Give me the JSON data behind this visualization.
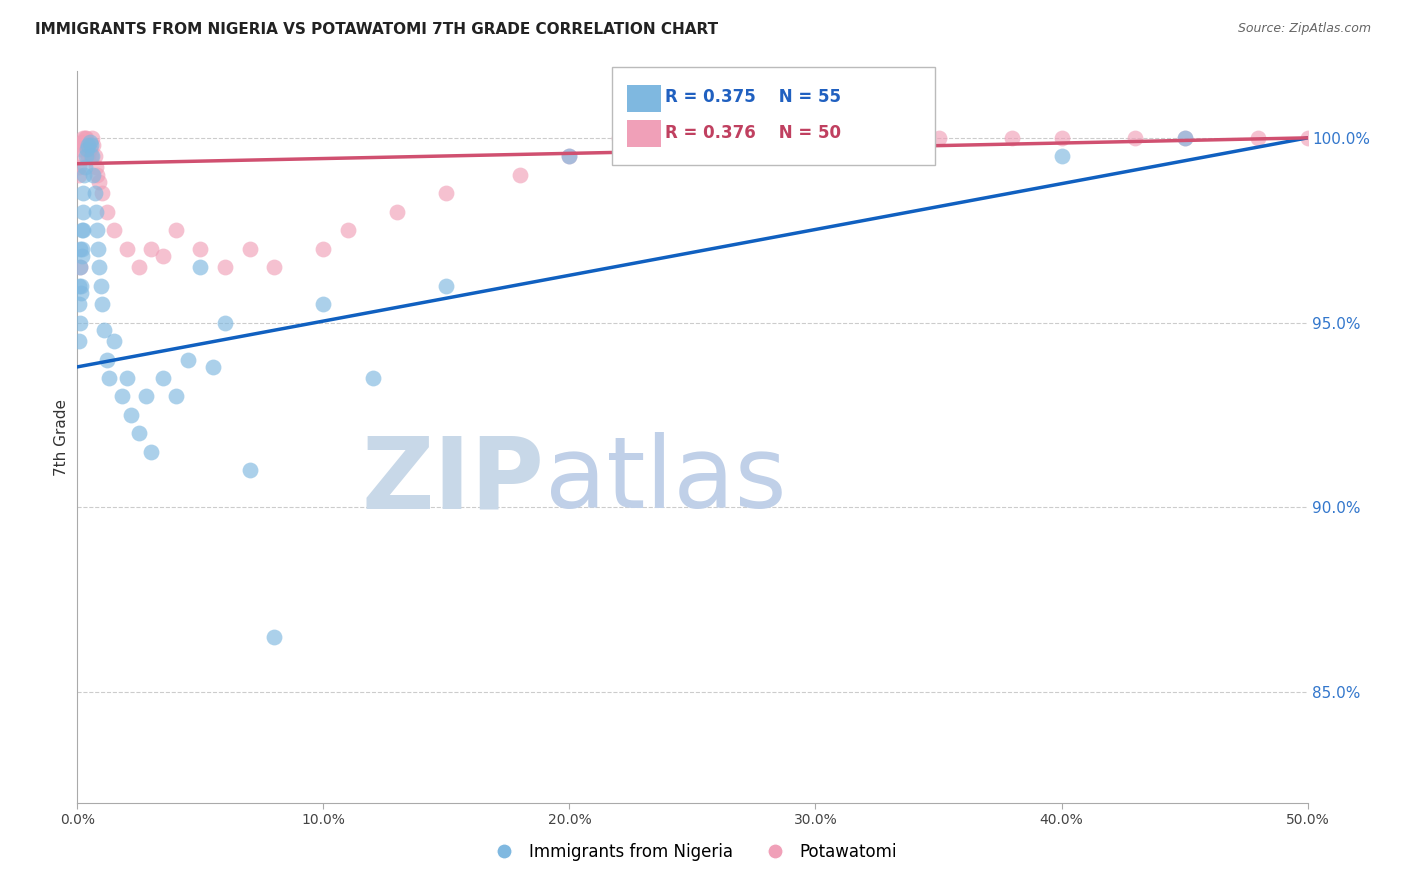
{
  "title": "IMMIGRANTS FROM NIGERIA VS POTAWATOMI 7TH GRADE CORRELATION CHART",
  "source": "Source: ZipAtlas.com",
  "ylabel": "7th Grade",
  "x_min": 0.0,
  "x_max": 50.0,
  "y_min": 82.0,
  "y_max": 101.8,
  "x_tick_labels": [
    "0.0%",
    "10.0%",
    "20.0%",
    "30.0%",
    "40.0%",
    "50.0%"
  ],
  "x_tick_values": [
    0,
    10,
    20,
    30,
    40,
    50
  ],
  "y_tick_labels": [
    "85.0%",
    "90.0%",
    "95.0%",
    "100.0%"
  ],
  "y_tick_values": [
    85,
    90,
    95,
    100
  ],
  "legend_label1": "Immigrants from Nigeria",
  "legend_label2": "Potawatomi",
  "legend_R1": "R = 0.375",
  "legend_N1": "N = 55",
  "legend_R2": "R = 0.376",
  "legend_N2": "N = 50",
  "color_blue": "#7fb8e0",
  "color_pink": "#f0a0b8",
  "line_color_blue": "#1060c0",
  "line_color_pink": "#d05070",
  "watermark_zip": "ZIP",
  "watermark_atlas": "atlas",
  "watermark_color_zip": "#c8d8e8",
  "watermark_color_atlas": "#c0d0e8",
  "nigeria_x": [
    0.05,
    0.08,
    0.1,
    0.12,
    0.15,
    0.18,
    0.2,
    0.22,
    0.25,
    0.28,
    0.3,
    0.35,
    0.4,
    0.45,
    0.5,
    0.55,
    0.6,
    0.65,
    0.7,
    0.75,
    0.8,
    0.85,
    0.9,
    0.95,
    1.0,
    1.1,
    1.2,
    1.3,
    1.5,
    1.8,
    2.0,
    2.2,
    2.5,
    2.8,
    3.0,
    3.5,
    4.0,
    4.5,
    5.0,
    5.5,
    6.0,
    7.0,
    8.0,
    10.0,
    12.0,
    15.0,
    20.0,
    25.0,
    40.0,
    45.0,
    0.05,
    0.1,
    0.15,
    0.2,
    0.25
  ],
  "nigeria_y": [
    95.5,
    96.0,
    96.5,
    97.0,
    95.8,
    96.8,
    97.5,
    98.0,
    98.5,
    99.0,
    99.2,
    99.5,
    99.7,
    99.8,
    99.9,
    99.8,
    99.5,
    99.0,
    98.5,
    98.0,
    97.5,
    97.0,
    96.5,
    96.0,
    95.5,
    94.8,
    94.0,
    93.5,
    94.5,
    93.0,
    93.5,
    92.5,
    92.0,
    93.0,
    91.5,
    93.5,
    93.0,
    94.0,
    96.5,
    93.8,
    95.0,
    91.0,
    86.5,
    95.5,
    93.5,
    96.0,
    99.5,
    99.8,
    99.5,
    100.0,
    94.5,
    95.0,
    96.0,
    97.0,
    97.5
  ],
  "potawatomi_x": [
    0.05,
    0.08,
    0.1,
    0.15,
    0.18,
    0.2,
    0.22,
    0.25,
    0.3,
    0.35,
    0.4,
    0.45,
    0.5,
    0.55,
    0.6,
    0.65,
    0.7,
    0.75,
    0.8,
    0.9,
    1.0,
    1.2,
    1.5,
    2.0,
    2.5,
    3.0,
    3.5,
    4.0,
    5.0,
    6.0,
    7.0,
    8.0,
    10.0,
    11.0,
    13.0,
    15.0,
    18.0,
    20.0,
    22.0,
    25.0,
    28.0,
    30.0,
    35.0,
    38.0,
    40.0,
    43.0,
    45.0,
    48.0,
    50.0,
    0.12
  ],
  "potawatomi_y": [
    99.0,
    99.2,
    99.5,
    99.7,
    99.8,
    99.9,
    99.9,
    100.0,
    100.0,
    100.0,
    99.8,
    99.5,
    99.7,
    99.5,
    100.0,
    99.8,
    99.5,
    99.2,
    99.0,
    98.8,
    98.5,
    98.0,
    97.5,
    97.0,
    96.5,
    97.0,
    96.8,
    97.5,
    97.0,
    96.5,
    97.0,
    96.5,
    97.0,
    97.5,
    98.0,
    98.5,
    99.0,
    99.5,
    100.0,
    100.0,
    100.0,
    100.0,
    100.0,
    100.0,
    100.0,
    100.0,
    100.0,
    100.0,
    100.0,
    96.5
  ],
  "trend_blue_x0": 0.0,
  "trend_blue_y0": 93.8,
  "trend_blue_x1": 50.0,
  "trend_blue_y1": 100.0,
  "trend_pink_x0": 0.0,
  "trend_pink_y0": 99.3,
  "trend_pink_x1": 50.0,
  "trend_pink_y1": 100.0
}
